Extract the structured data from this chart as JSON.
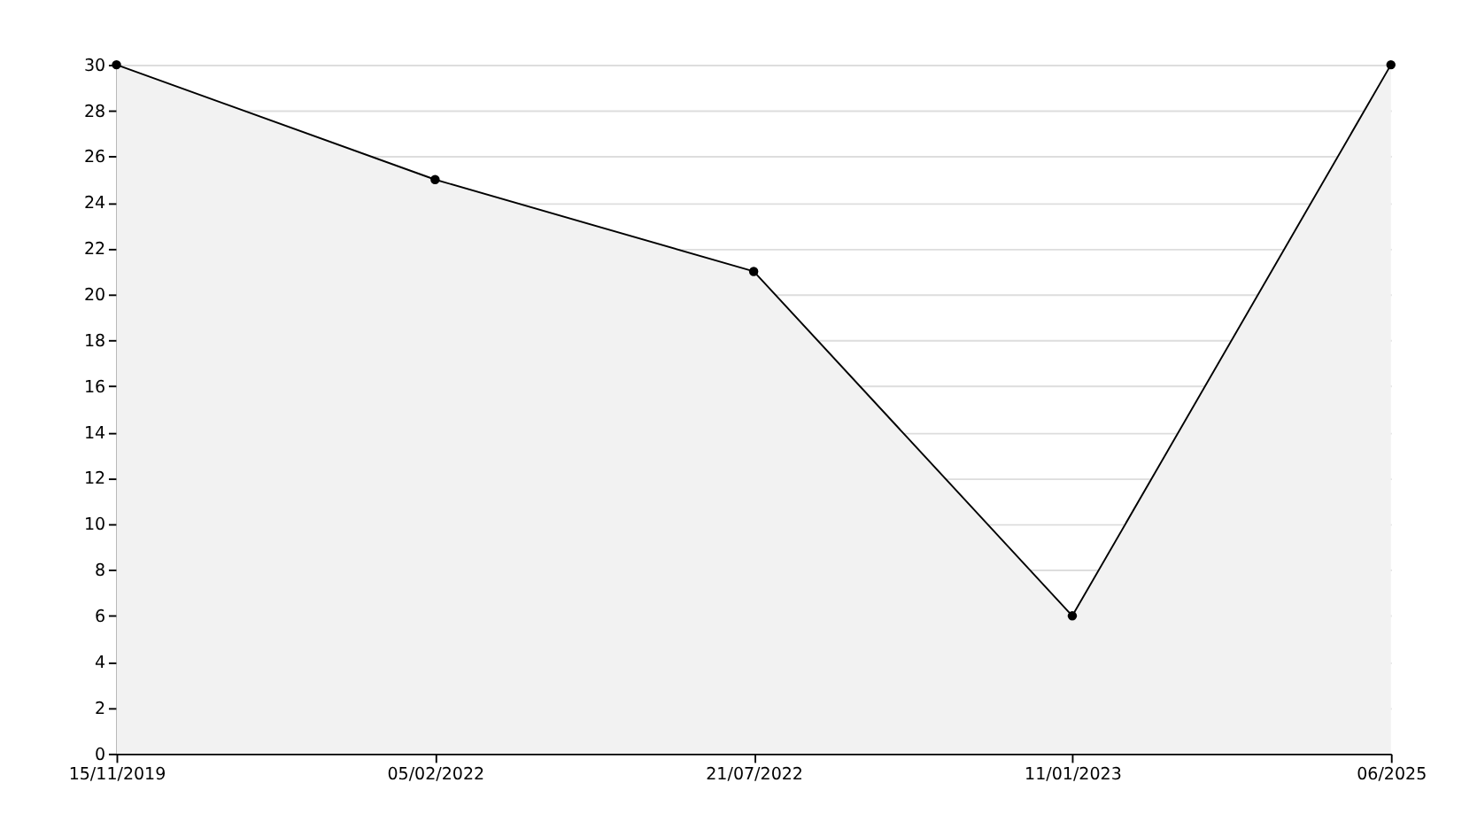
{
  "chart_data": {
    "type": "area",
    "categories": [
      "15/11/2019",
      "05/02/2022",
      "21/07/2022",
      "11/01/2023",
      "06/2025"
    ],
    "series": [
      {
        "color": "#000000",
        "values": [
          30,
          25,
          21,
          6,
          30
        ]
      }
    ],
    "ylim": [
      0,
      30
    ],
    "yticks": [
      0,
      2,
      4,
      6,
      8,
      10,
      12,
      14,
      16,
      18,
      20,
      22,
      24,
      26,
      28,
      30
    ],
    "grid": "y",
    "marker": "circle",
    "line_style": "solid"
  }
}
